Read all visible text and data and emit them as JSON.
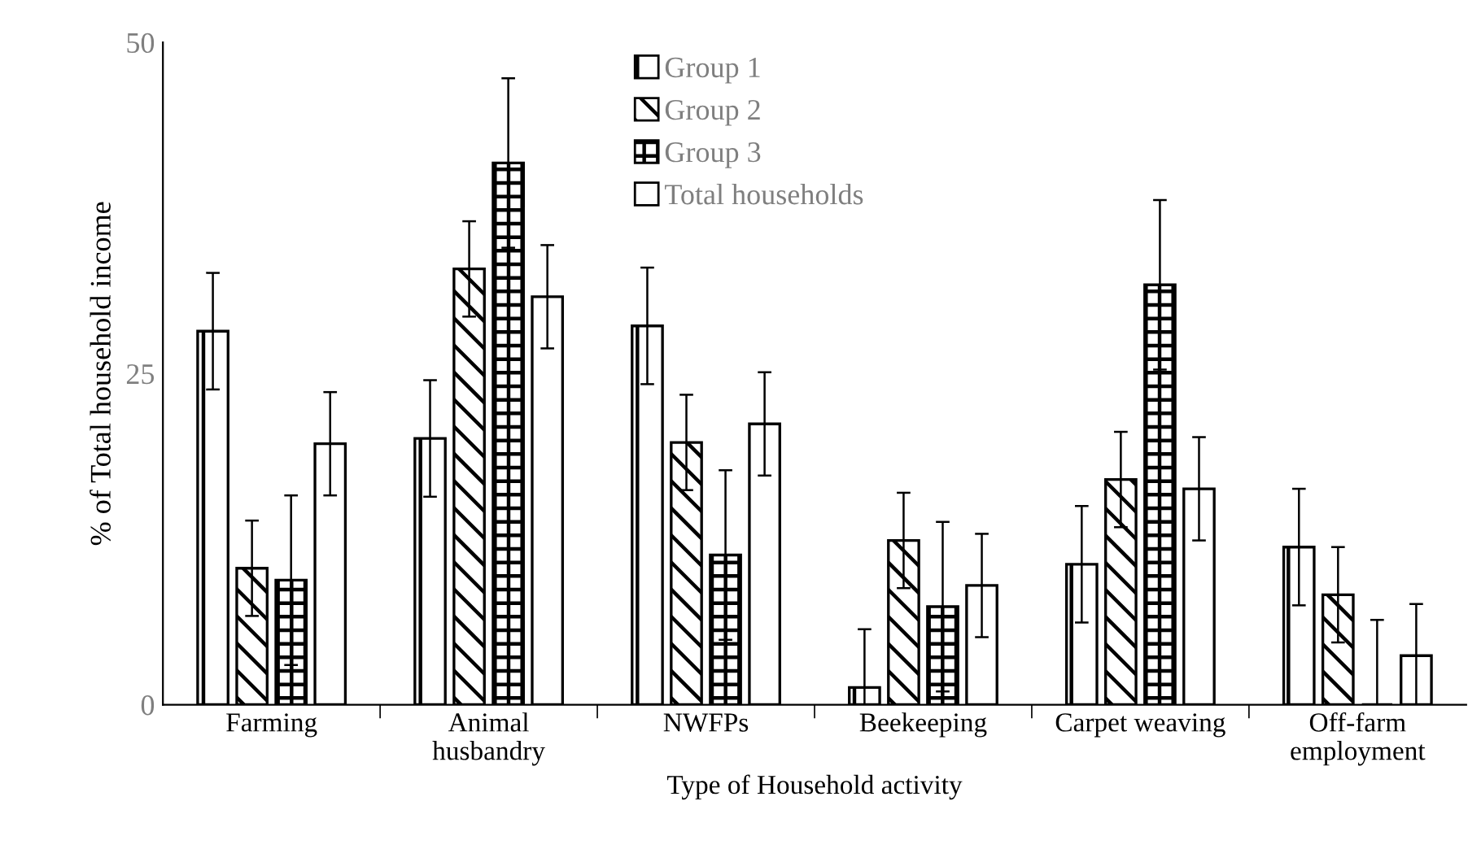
{
  "chart_data": {
    "type": "bar",
    "xlabel": "Type of Household activity",
    "ylabel": "% of Total household income",
    "categories": [
      "Farming",
      "Animal\nhusbandry",
      "NWFPs",
      "Beekeeping",
      "Carpet weaving",
      "Off-farm\nemployment"
    ],
    "series": [
      {
        "name": "Group 1",
        "color": "#000000",
        "values": [
          28.2,
          20.1,
          28.6,
          1.3,
          10.6,
          11.9
        ],
        "errors": [
          4.4,
          4.4,
          4.4,
          4.4,
          4.4,
          4.4
        ]
      },
      {
        "name": "Group 2",
        "color": "#000000",
        "values": [
          10.3,
          32.9,
          19.8,
          12.4,
          17.0,
          8.3
        ],
        "errors": [
          3.6,
          3.6,
          3.6,
          3.6,
          3.6,
          3.6
        ]
      },
      {
        "name": "Group 3",
        "color": "#000000",
        "values": [
          9.4,
          40.9,
          11.3,
          7.4,
          31.7,
          0
        ],
        "errors": [
          6.4,
          6.4,
          6.4,
          6.4,
          6.4,
          6.4
        ]
      },
      {
        "name": "Total households",
        "color": "#000000",
        "values": [
          19.7,
          30.8,
          21.2,
          9.0,
          16.3,
          3.7
        ],
        "errors": [
          3.9,
          3.9,
          3.9,
          3.9,
          3.9,
          3.9
        ]
      }
    ],
    "ylim": [
      0,
      50
    ],
    "yticks": [
      0,
      25,
      50
    ],
    "legend": "top",
    "grid": false
  }
}
